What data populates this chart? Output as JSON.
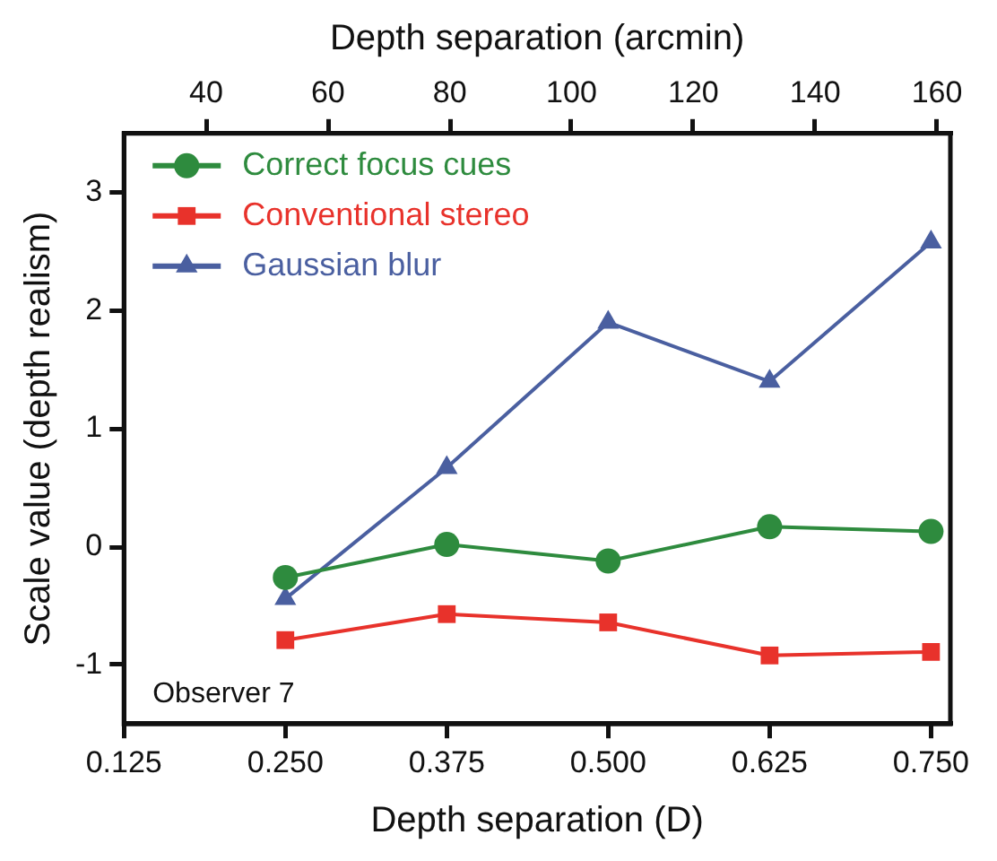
{
  "chart_data": {
    "type": "line",
    "xlabel": "Depth separation (D)",
    "x2label": "Depth separation (arcmin)",
    "ylabel": "Scale value (depth realism)",
    "x": [
      0.25,
      0.375,
      0.5,
      0.625,
      0.75
    ],
    "xlim": [
      0.125,
      0.765
    ],
    "xticks": [
      {
        "value": 0.125,
        "label": "0.125"
      },
      {
        "value": 0.25,
        "label": "0.250"
      },
      {
        "value": 0.375,
        "label": "0.375"
      },
      {
        "value": 0.5,
        "label": "0.500"
      },
      {
        "value": 0.625,
        "label": "0.625"
      },
      {
        "value": 0.75,
        "label": "0.750"
      }
    ],
    "x2lim": [
      26.5,
      162.2
    ],
    "x2ticks": [
      40,
      60,
      80,
      100,
      120,
      140,
      160
    ],
    "ylim": [
      -1.5,
      3.5
    ],
    "yticks": [
      -1,
      0,
      1,
      2,
      3
    ],
    "series": [
      {
        "name": "Correct focus cues",
        "color": "#2e8b3e",
        "marker": "circle",
        "values": [
          -0.26,
          0.02,
          -0.12,
          0.17,
          0.13
        ]
      },
      {
        "name": "Conventional stereo",
        "color": "#e8322b",
        "marker": "square",
        "values": [
          -0.79,
          -0.57,
          -0.64,
          -0.92,
          -0.89
        ]
      },
      {
        "name": "Gaussian blur",
        "color": "#4a5fa0",
        "marker": "triangle",
        "values": [
          -0.44,
          0.67,
          1.9,
          1.4,
          2.58
        ]
      }
    ],
    "annotations": [
      "Observer 7"
    ],
    "grid": false,
    "legend": "top left",
    "line_style": "solid"
  }
}
